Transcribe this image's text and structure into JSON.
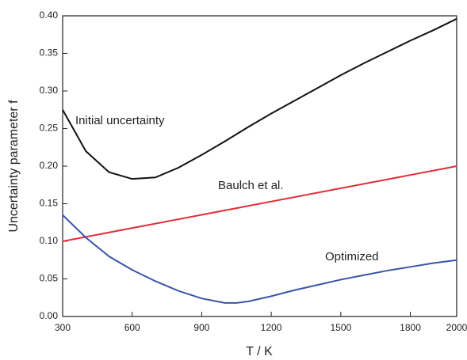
{
  "chart_data": {
    "type": "line",
    "xlabel": "T / K",
    "ylabel": "Uncertainty parameter f",
    "xlim": [
      300,
      2000
    ],
    "xticks": [
      300,
      600,
      900,
      1200,
      1500,
      1800,
      2000
    ],
    "ylim": [
      0,
      0.4
    ],
    "yticks": [
      {
        "value": 0,
        "label": "0.00"
      },
      {
        "value": 0.05,
        "label": "0.05"
      },
      {
        "value": 0.1,
        "label": "0.10"
      },
      {
        "value": 0.15,
        "label": "0.15"
      },
      {
        "value": 0.2,
        "label": "0.20"
      },
      {
        "value": 0.25,
        "label": "0.25"
      },
      {
        "value": 0.3,
        "label": "0.30"
      },
      {
        "value": 0.35,
        "label": "0.35"
      },
      {
        "value": 0.4,
        "label": "0.40"
      }
    ],
    "series": [
      {
        "name": "Initial uncertainty",
        "color": "#111111",
        "x": [
          300,
          400,
          500,
          600,
          700,
          800,
          900,
          1000,
          1100,
          1200,
          1300,
          1400,
          1500,
          1600,
          1700,
          1800,
          1900,
          2000
        ],
        "values": [
          0.275,
          0.22,
          0.192,
          0.183,
          0.185,
          0.198,
          0.215,
          0.233,
          0.252,
          0.27,
          0.287,
          0.304,
          0.321,
          0.337,
          0.352,
          0.367,
          0.381,
          0.396
        ]
      },
      {
        "name": "Baulch et al.",
        "color": "#e0303a",
        "x": [
          300,
          2000
        ],
        "values": [
          0.1,
          0.2
        ]
      },
      {
        "name": "Optimized",
        "color": "#3a55a8",
        "x": [
          300,
          400,
          500,
          600,
          700,
          800,
          900,
          1000,
          1050,
          1100,
          1200,
          1300,
          1400,
          1500,
          1600,
          1700,
          1800,
          1900,
          2000
        ],
        "values": [
          0.135,
          0.105,
          0.08,
          0.062,
          0.047,
          0.034,
          0.024,
          0.018,
          0.018,
          0.02,
          0.027,
          0.035,
          0.042,
          0.049,
          0.055,
          0.061,
          0.066,
          0.071,
          0.075
        ]
      }
    ]
  }
}
